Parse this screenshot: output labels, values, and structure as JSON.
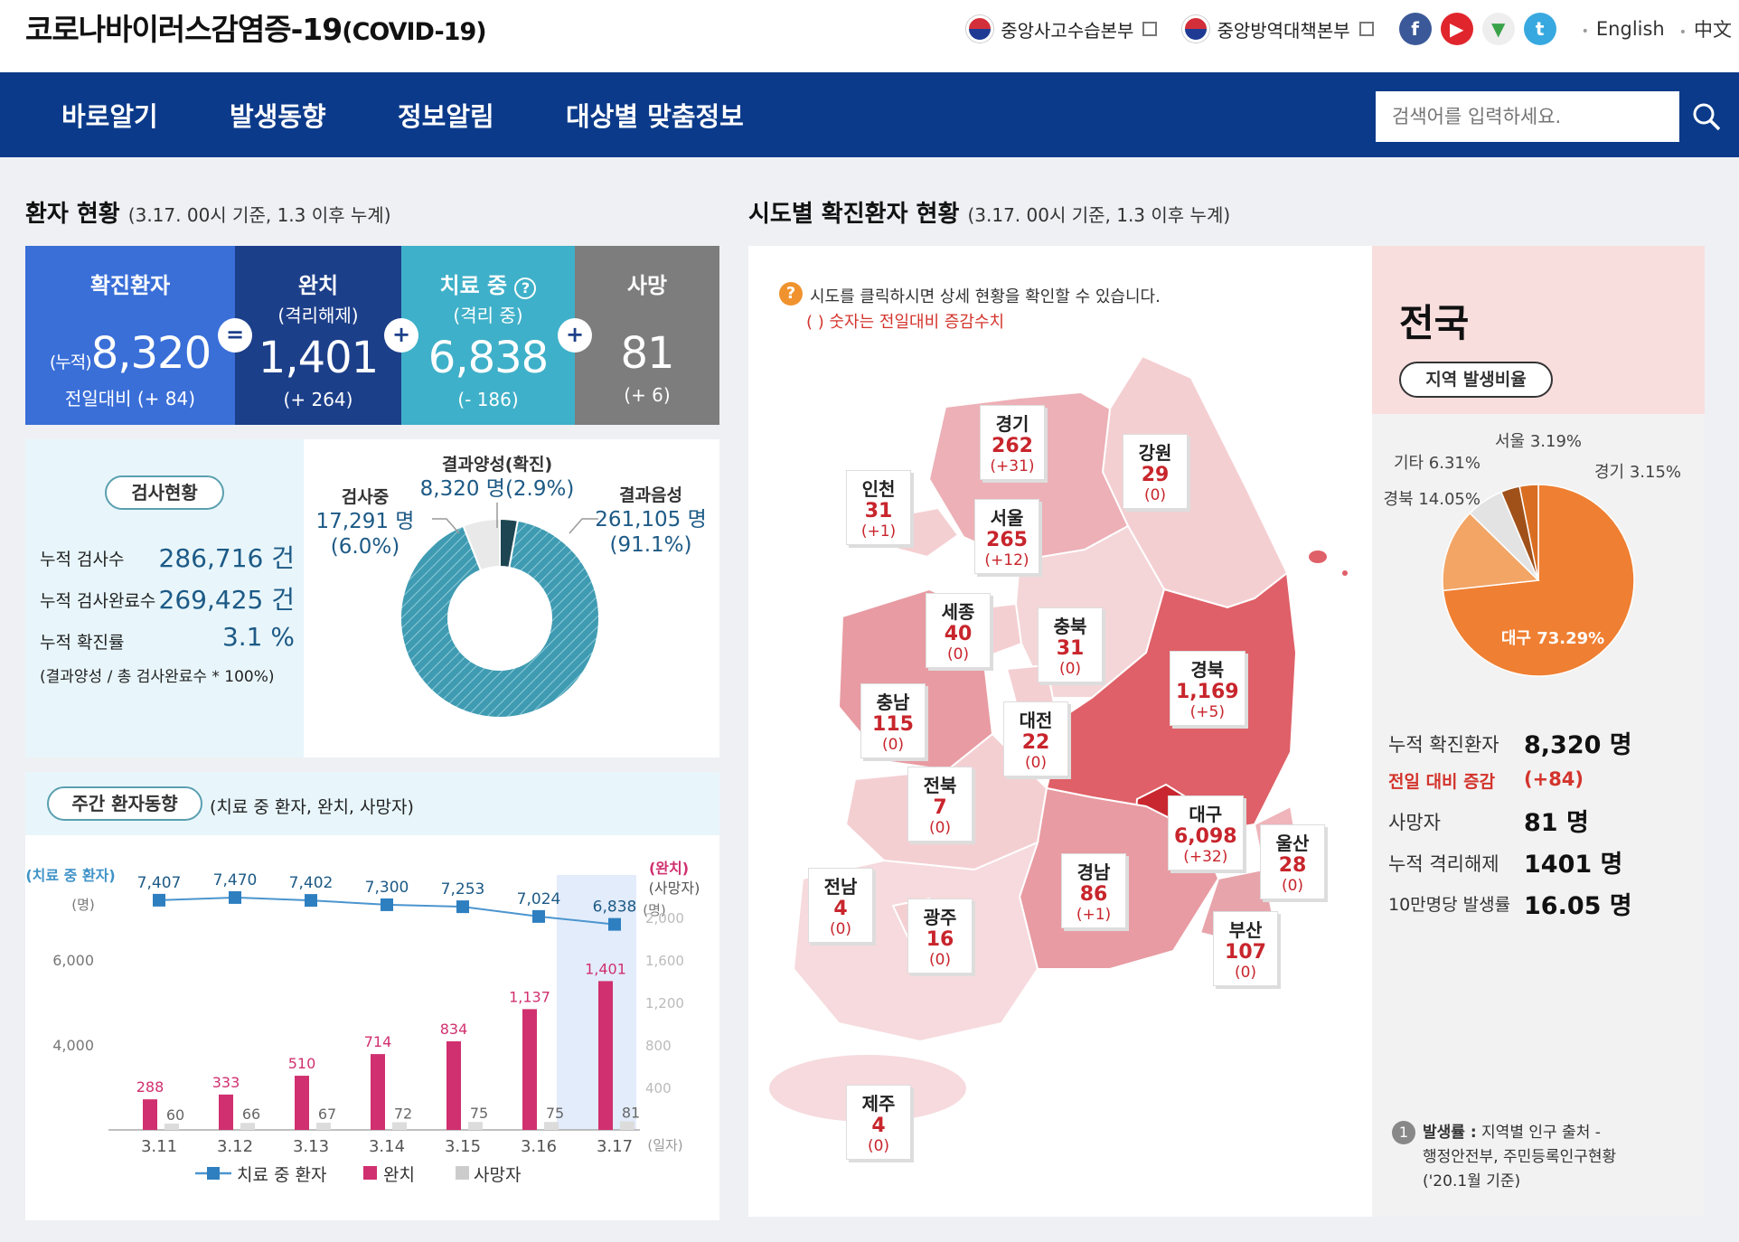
{
  "header": {
    "title": "코로나바이러스감염증-19",
    "title_sub": "(COVID-19)",
    "agency1": "중앙사고수습본부",
    "agency2": "중앙방역대책본부",
    "lang_en": "English",
    "lang_zh": "中文"
  },
  "nav": {
    "items": [
      "바로알기",
      "발생동향",
      "정보알림",
      "대상별 맞춤정보"
    ],
    "search_placeholder": "검색어를 입력하세요."
  },
  "patients": {
    "title": "환자 현황",
    "note": "(3.17. 00시 기준, 1.3 이후 누계)",
    "confirmed": {
      "label": "확진환자",
      "prefix": "(누적)",
      "value": "8,320",
      "change": "전일대비 (+ 84)"
    },
    "released": {
      "label": "완치",
      "sub": "(격리해제)",
      "value": "1,401",
      "change": "(+ 264)"
    },
    "treating": {
      "label": "치료 중",
      "sub": "(격리 중)",
      "value": "6,838",
      "change": "(- 186)"
    },
    "deaths": {
      "label": "사망",
      "value": "81",
      "change": "(+ 6)"
    },
    "op_eq": "=",
    "op_plus": "+"
  },
  "tests": {
    "pill": "검사현황",
    "total_label": "누적 검사수",
    "total_value": "286,716 건",
    "done_label": "누적 검사완료수",
    "done_value": "269,425 건",
    "rate_label": "누적 확진률",
    "rate_value": "3.1 %",
    "formula": "(결과양성 / 총 검사완료수 * 100%)",
    "positive_label": "결과양성(확진)",
    "positive_value": "8,320 명(2.9%)",
    "testing_label": "검사중",
    "testing_value": "17,291 명",
    "testing_pct": "(6.0%)",
    "negative_label": "결과음성",
    "negative_value": "261,105 명",
    "negative_pct": "(91.1%)"
  },
  "weekly": {
    "pill": "주간 환자동향",
    "note": "(치료 중 환자, 완치, 사망자)",
    "left_axis_title": "(치료 중 환자)",
    "left_axis_unit": "(명)",
    "right_axis_title": "(완치)",
    "right_axis_title2": "(사망자)",
    "right_axis_unit": "(명)",
    "x_unit": "(일자)",
    "legend_treating": "치료 중 환자",
    "legend_released": "완치",
    "legend_deaths": "사망자"
  },
  "chart_data": {
    "type": "bar",
    "categories": [
      "3.11",
      "3.12",
      "3.13",
      "3.14",
      "3.15",
      "3.16",
      "3.17"
    ],
    "series": [
      {
        "name": "치료 중 환자",
        "type": "line",
        "axis": "left",
        "values": [
          7407,
          7470,
          7402,
          7300,
          7253,
          7024,
          6838
        ],
        "labels": [
          "7,407",
          "7,470",
          "7,402",
          "7,300",
          "7,253",
          "7,024",
          "6,838"
        ]
      },
      {
        "name": "완치",
        "type": "bar",
        "axis": "right",
        "values": [
          288,
          333,
          510,
          714,
          834,
          1137,
          1401
        ],
        "labels": [
          "288",
          "333",
          "510",
          "714",
          "834",
          "1,137",
          "1,401"
        ]
      },
      {
        "name": "사망자",
        "type": "bar",
        "axis": "right",
        "values": [
          60,
          66,
          67,
          72,
          75,
          75,
          81
        ],
        "labels": [
          "60",
          "66",
          "67",
          "72",
          "75",
          "75",
          "81"
        ]
      }
    ],
    "left_ticks": [
      "6,000",
      "4,000"
    ],
    "right_ticks": [
      "2,000",
      "1,600",
      "1,200",
      "800",
      "400"
    ],
    "left_range": [
      2000,
      8000
    ],
    "right_range": [
      0,
      2400
    ]
  },
  "donut_data": {
    "type": "pie",
    "slices": [
      {
        "name": "결과음성",
        "value": 91.1,
        "color": "#3f9bb2"
      },
      {
        "name": "검사중",
        "value": 6.0,
        "color": "#e9e9e9"
      },
      {
        "name": "결과양성(확진)",
        "value": 2.9,
        "color": "#1d4652"
      }
    ]
  },
  "map": {
    "title": "시도별 확진환자 현황",
    "note": "(3.17. 00시 기준, 1.3 이후 누계)",
    "hint1": "시도를 클릭하시면 상세 현황을 확인할 수 있습니다.",
    "hint2": "( ) 숫자는 전일대비 증감수치",
    "regions": [
      {
        "name": "경기",
        "count": "262",
        "delta": "(+31)"
      },
      {
        "name": "강원",
        "count": "29",
        "delta": "(0)"
      },
      {
        "name": "인천",
        "count": "31",
        "delta": "(+1)"
      },
      {
        "name": "서울",
        "count": "265",
        "delta": "(+12)"
      },
      {
        "name": "세종",
        "count": "40",
        "delta": "(0)"
      },
      {
        "name": "충북",
        "count": "31",
        "delta": "(0)"
      },
      {
        "name": "경북",
        "count": "1,169",
        "delta": "(+5)"
      },
      {
        "name": "충남",
        "count": "115",
        "delta": "(0)"
      },
      {
        "name": "대전",
        "count": "22",
        "delta": "(0)"
      },
      {
        "name": "전북",
        "count": "7",
        "delta": "(0)"
      },
      {
        "name": "대구",
        "count": "6,098",
        "delta": "(+32)"
      },
      {
        "name": "울산",
        "count": "28",
        "delta": "(0)"
      },
      {
        "name": "경남",
        "count": "86",
        "delta": "(+1)"
      },
      {
        "name": "전남",
        "count": "4",
        "delta": "(0)"
      },
      {
        "name": "광주",
        "count": "16",
        "delta": "(0)"
      },
      {
        "name": "부산",
        "count": "107",
        "delta": "(0)"
      },
      {
        "name": "제주",
        "count": "4",
        "delta": "(0)"
      }
    ]
  },
  "nation": {
    "title": "전국",
    "pill": "지역 발생비율",
    "pie": {
      "type": "pie",
      "slices": [
        {
          "name": "대구",
          "label": "대구 73.29%",
          "value": 73.29,
          "color": "#ef7f32"
        },
        {
          "name": "경북",
          "label": "경북 14.05%",
          "value": 14.05,
          "color": "#f2a565"
        },
        {
          "name": "기타",
          "label": "기타 6.31%",
          "value": 6.31,
          "color": "#e3e3e3"
        },
        {
          "name": "서울",
          "label": "서울 3.19%",
          "value": 3.19,
          "color": "#a0511a"
        },
        {
          "name": "경기",
          "label": "경기 3.15%",
          "value": 3.15,
          "color": "#d96e22"
        }
      ]
    },
    "confirmed_label": "누적 확진환자",
    "confirmed_value": "8,320 명",
    "delta_label": "전일 대비 증감",
    "delta_value": "(+84)",
    "deaths_label": "사망자",
    "deaths_value": "81 명",
    "released_label": "누적 격리해제",
    "released_value": "1401 명",
    "rate_label": "10만명당 발생률",
    "rate_value": "16.05 명",
    "footnote_num": "1",
    "footnote_bold": "발생률 :",
    "footnote1": "지역별 인구 출처 -",
    "footnote2": "행정안전부, 주민등록인구현황",
    "footnote3": "('20.1월 기준)"
  }
}
